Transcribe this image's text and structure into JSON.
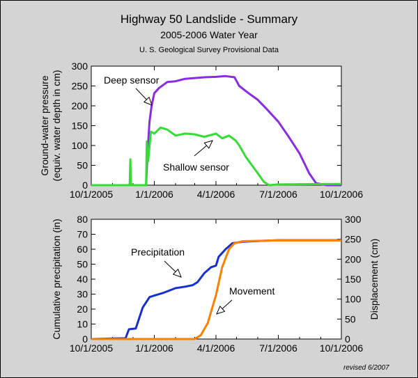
{
  "header": {
    "title": "Highway 50 Landslide - Summary",
    "subtitle": "2005-2006 Water Year",
    "source": "U. S. Geological Survey Provisional Data"
  },
  "footer": {
    "revised": "revised 6/2007"
  },
  "chart_data": [
    {
      "type": "line",
      "ylabel_line1": "Ground-water pressure",
      "ylabel_line2": "(equiv. water depth in cm)",
      "ylim": [
        0,
        300
      ],
      "y_ticks": [
        0,
        50,
        100,
        150,
        200,
        250,
        300
      ],
      "x_tick_labels": [
        "10/1/2005",
        "1/1/2006",
        "4/1/2006",
        "7/1/2006",
        "10/1/2006"
      ],
      "grid": false,
      "series": [
        {
          "name": "Deep sensor",
          "color": "#8a2be2",
          "x": [
            "2005-10-01",
            "2005-12-20",
            "2005-12-22",
            "2005-12-25",
            "2005-12-28",
            "2006-01-01",
            "2006-01-08",
            "2006-01-20",
            "2006-02-01",
            "2006-02-15",
            "2006-03-01",
            "2006-03-15",
            "2006-04-01",
            "2006-04-15",
            "2006-04-28",
            "2006-05-05",
            "2006-05-20",
            "2006-06-01",
            "2006-06-15",
            "2006-07-01",
            "2006-07-15",
            "2006-08-01",
            "2006-08-15",
            "2006-08-25",
            "2006-09-10",
            "2006-10-01"
          ],
          "y": [
            0,
            0,
            80,
            160,
            200,
            232,
            245,
            260,
            262,
            268,
            270,
            272,
            273,
            275,
            272,
            250,
            230,
            215,
            190,
            160,
            125,
            80,
            30,
            5,
            0,
            0
          ]
        },
        {
          "name": "Shallow sensor",
          "color": "#33dd33",
          "x": [
            "2005-10-01",
            "2005-11-26",
            "2005-11-27",
            "2005-11-28",
            "2005-12-20",
            "2005-12-21",
            "2005-12-23",
            "2005-12-27",
            "2006-01-01",
            "2006-01-10",
            "2006-01-20",
            "2006-02-01",
            "2006-02-15",
            "2006-03-01",
            "2006-03-15",
            "2006-04-01",
            "2006-04-10",
            "2006-04-20",
            "2006-04-30",
            "2006-05-05",
            "2006-05-15",
            "2006-06-01",
            "2006-06-10",
            "2006-06-18",
            "2006-07-01",
            "2006-10-01"
          ],
          "y": [
            0,
            0,
            65,
            0,
            0,
            110,
            60,
            135,
            130,
            145,
            140,
            125,
            130,
            128,
            122,
            130,
            118,
            125,
            112,
            100,
            70,
            30,
            8,
            0,
            2,
            3
          ]
        }
      ],
      "annotations": [
        {
          "text": "Deep sensor",
          "x": "2006-01-01",
          "y": 240
        },
        {
          "text": "Shallow sensor",
          "x": "2006-04-01",
          "y": 120
        }
      ]
    },
    {
      "type": "line",
      "ylabel": "Cumulative precipitation (in)",
      "y2label": "Displacement (cm)",
      "ylim": [
        0,
        80
      ],
      "y2lim": [
        0,
        300
      ],
      "y_ticks": [
        0,
        10,
        20,
        30,
        40,
        50,
        60,
        70,
        80
      ],
      "y2_ticks": [
        0,
        50,
        100,
        150,
        200,
        250,
        300
      ],
      "x_tick_labels": [
        "10/1/2005",
        "1/1/2006",
        "4/1/2006",
        "7/1/2006",
        "10/1/2006"
      ],
      "grid": false,
      "series": [
        {
          "name": "Precipitation",
          "axis": "left",
          "color": "#1530d0",
          "x": [
            "2005-10-01",
            "2005-11-20",
            "2005-11-25",
            "2005-12-05",
            "2005-12-15",
            "2005-12-25",
            "2006-01-01",
            "2006-01-15",
            "2006-02-01",
            "2006-02-15",
            "2006-02-26",
            "2006-03-05",
            "2006-03-15",
            "2006-03-25",
            "2006-04-01",
            "2006-04-05",
            "2006-04-15",
            "2006-04-25",
            "2006-05-10",
            "2006-06-01",
            "2006-07-01",
            "2006-10-01"
          ],
          "y": [
            0,
            0.5,
            6.5,
            7,
            21,
            28,
            29,
            31,
            34,
            35,
            36,
            38,
            44,
            48,
            49,
            55,
            60,
            64,
            65,
            65.5,
            66,
            66
          ]
        },
        {
          "name": "Movement",
          "axis": "right",
          "color": "#ff7f00",
          "x": [
            "2005-10-01",
            "2006-03-01",
            "2006-03-10",
            "2006-03-20",
            "2006-04-01",
            "2006-04-10",
            "2006-04-20",
            "2006-04-28",
            "2006-05-10",
            "2006-06-01",
            "2006-07-01",
            "2006-10-01"
          ],
          "y": [
            0,
            0,
            10,
            40,
            110,
            180,
            225,
            240,
            245,
            246,
            247,
            247
          ]
        }
      ],
      "annotations": [
        {
          "text": "Precipitation",
          "x": "2006-01-20",
          "y": 45
        },
        {
          "text": "Movement",
          "x": "2006-05-05",
          "y": 25
        }
      ]
    }
  ]
}
